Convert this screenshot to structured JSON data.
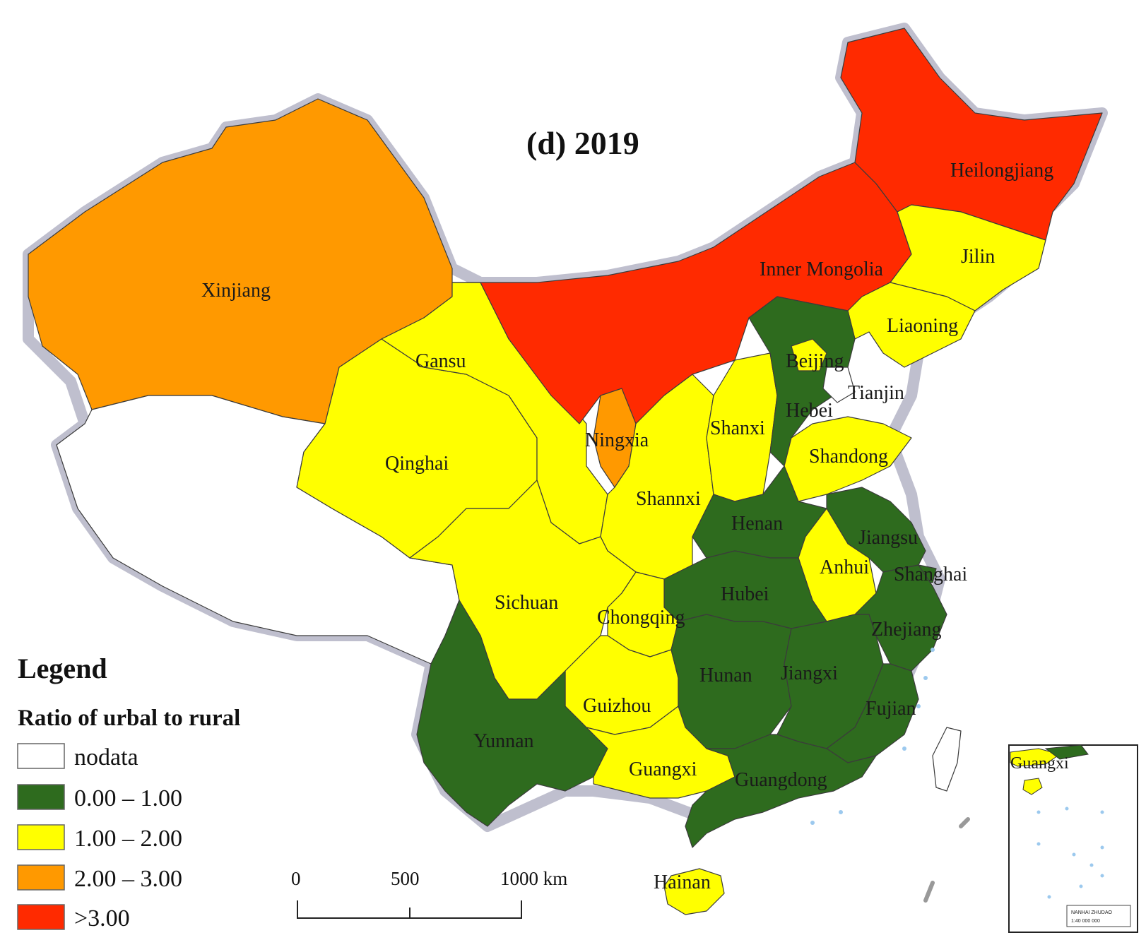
{
  "title": "(d)  2019",
  "legend": {
    "title": "Legend",
    "subtitle": "Ratio of urbal to rural",
    "items": [
      {
        "label": "nodata",
        "color": "#ffffff"
      },
      {
        "label": "0.00 – 1.00",
        "color": "#2e6b1e"
      },
      {
        "label": "1.00 – 2.00",
        "color": "#ffff00"
      },
      {
        "label": "2.00 – 3.00",
        "color": "#ff9900"
      },
      {
        "label": ">3.00",
        "color": "#ff2a00"
      }
    ]
  },
  "scale_bar": {
    "ticks": [
      "0",
      "500",
      "1000 km"
    ]
  },
  "provinces": {
    "xinjiang": "Xinjiang",
    "heilongjiang": "Heilongjiang",
    "jilin": "Jilin",
    "inner_mongolia": "Inner Mongolia",
    "liaoning": "Liaoning",
    "gansu": "Gansu",
    "beijing": "Beijing",
    "tianjin": "Tianjin",
    "hebei": "Hebei",
    "shanxi": "Shanxi",
    "ningxia": "Ningxia",
    "qinghai": "Qinghai",
    "shandong": "Shandong",
    "shannxi": "Shannxi",
    "henan": "Henan",
    "jiangsu": "Jiangsu",
    "anhui": "Anhui",
    "shanghai": "Shanghai",
    "hubei": "Hubei",
    "sichuan": "Sichuan",
    "chongqing": "Chongqing",
    "zhejiang": "Zhejiang",
    "hunan": "Hunan",
    "jiangxi": "Jiangxi",
    "guizhou": "Guizhou",
    "fujian": "Fujian",
    "yunnan": "Yunnan",
    "guangxi": "Guangxi",
    "guangdong": "Guangdong",
    "hainan": "Hainan"
  },
  "inset": {
    "label": "Guangxi",
    "note": "NANHAI ZHUDAO",
    "scale": "1:40 000 000"
  }
}
